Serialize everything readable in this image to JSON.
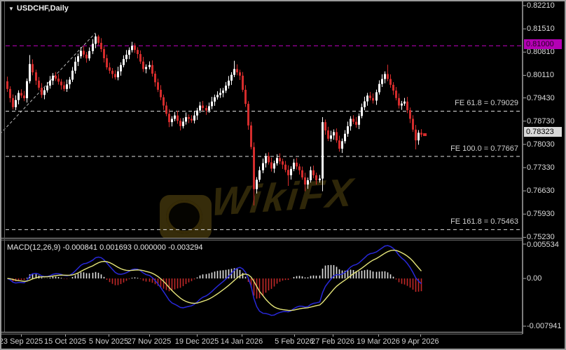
{
  "window": {
    "symbol_label": "USDCHF,Daily",
    "dropdown_icon": "triangle-down"
  },
  "watermark": {
    "text": "WikiFX"
  },
  "colors": {
    "background": "#000000",
    "bull": "#ffffff",
    "bear": "#d42c2c",
    "level_dash": "#dedede",
    "round_level": "#c400c4",
    "macd_line": "#2828d8",
    "signal_line": "#e6e67a",
    "hist_pos": "#e2e2e2",
    "hist_neg": "#c22828",
    "axis_text": "#dcdcdc",
    "current_price_box": "#d9d9d9"
  },
  "chart_data": {
    "type": "candlestick",
    "symbol": "USDCHF",
    "timeframe": "Daily",
    "y_axis_range": [
      0.7512,
      0.8223
    ],
    "grid": false,
    "y_tick_labels": [
      "0.82210",
      "0.81510",
      "0.80810",
      "0.80110",
      "0.79430",
      "0.78730",
      "0.78030",
      "0.77330",
      "0.76630",
      "0.75930",
      "0.75230"
    ],
    "x_tick_labels": [
      "23 Sep 2025",
      "15 Oct 2025",
      "5 Nov 2025",
      "27 Nov 2025",
      "19 Dec 2025",
      "14 Jan 2026",
      "5 Feb 2026",
      "27 Feb 2026",
      "19 Mar 2026",
      "9 Apr 2026"
    ],
    "fib_levels": [
      {
        "name": "FE 61.8",
        "price": 0.79029,
        "label": "FE 61.8 = 0.79029"
      },
      {
        "name": "FE 100.0",
        "price": 0.77667,
        "label": "FE 100.0 = 0.77667"
      },
      {
        "name": "FE 161.8",
        "price": 0.75463,
        "label": "FE 161.8 = 0.75463"
      }
    ],
    "round_level": {
      "price": 0.81,
      "label": "0.81000"
    },
    "current_price": {
      "value": 0.78323,
      "label": "0.78323"
    },
    "trendline": {
      "x1_index": -2.5,
      "y1_price": 0.7834,
      "x2_index": 31.2,
      "y2_price": 0.8139,
      "style": "dashed"
    },
    "indicator": {
      "name": "MACD",
      "params": "12,26,9",
      "header": "MACD(12,26,9) -0.000841 0.001693 0.000000 -0.003294",
      "display_values": [
        "-0.000841",
        "0.001693",
        "0.000000",
        "-0.003294"
      ],
      "axis_labels": [
        "0.005534",
        "0.00",
        "-0.007941"
      ]
    },
    "ohlc": [
      [
        0.7993,
        0.8007,
        0.7961,
        0.797
      ],
      [
        0.797,
        0.7978,
        0.79295,
        0.79425
      ],
      [
        0.79425,
        0.79535,
        0.7908,
        0.7915
      ],
      [
        0.7915,
        0.79505,
        0.7906,
        0.79365
      ],
      [
        0.79365,
        0.7966,
        0.79235,
        0.7958
      ],
      [
        0.7958,
        0.7969,
        0.7943,
        0.795
      ],
      [
        0.795,
        0.7964,
        0.7933,
        0.7942
      ],
      [
        0.7942,
        0.80015,
        0.7929,
        0.79935
      ],
      [
        0.79935,
        0.8072,
        0.79865,
        0.8045
      ],
      [
        0.8045,
        0.8059,
        0.8011,
        0.802
      ],
      [
        0.802,
        0.8028,
        0.7982,
        0.7995
      ],
      [
        0.7995,
        0.8006,
        0.79665,
        0.79735
      ],
      [
        0.79735,
        0.79875,
        0.7943,
        0.7952
      ],
      [
        0.7952,
        0.7974,
        0.7939,
        0.7966
      ],
      [
        0.7966,
        0.7991,
        0.7959,
        0.798
      ],
      [
        0.798,
        0.8009,
        0.7971,
        0.7995
      ],
      [
        0.7995,
        0.8018,
        0.7982,
        0.801
      ],
      [
        0.801,
        0.8021,
        0.7994,
        0.8001
      ],
      [
        0.8001,
        0.8015,
        0.7983,
        0.7992
      ],
      [
        0.7992,
        0.8,
        0.7968,
        0.7981
      ],
      [
        0.7981,
        0.7992,
        0.7963,
        0.797
      ],
      [
        0.797,
        0.7998,
        0.7961,
        0.7984
      ],
      [
        0.7984,
        0.8006,
        0.7971,
        0.7998
      ],
      [
        0.7998,
        0.8036,
        0.7991,
        0.8025
      ],
      [
        0.8025,
        0.8066,
        0.8016,
        0.8052
      ],
      [
        0.8052,
        0.80765,
        0.8039,
        0.80685
      ],
      [
        0.80685,
        0.8096,
        0.80615,
        0.8085
      ],
      [
        0.8085,
        0.8099,
        0.80645,
        0.80735
      ],
      [
        0.80735,
        0.80815,
        0.8049,
        0.8062
      ],
      [
        0.8062,
        0.8095,
        0.8055,
        0.8084
      ],
      [
        0.8084,
        0.812,
        0.8075,
        0.8106
      ],
      [
        0.8106,
        0.8136,
        0.8093,
        0.8128
      ],
      [
        0.8128,
        0.8133,
        0.8102,
        0.8109
      ],
      [
        0.8109,
        0.8123,
        0.8081,
        0.809
      ],
      [
        0.809,
        0.8098,
        0.80495,
        0.80625
      ],
      [
        0.80625,
        0.80735,
        0.8028,
        0.8035
      ],
      [
        0.8035,
        0.8049,
        0.8016,
        0.8025
      ],
      [
        0.8025,
        0.8033,
        0.8002,
        0.8015
      ],
      [
        0.8015,
        0.8026,
        0.7998,
        0.8005
      ],
      [
        0.8005,
        0.8037,
        0.7996,
        0.8023
      ],
      [
        0.8023,
        0.805,
        0.801,
        0.8042
      ],
      [
        0.8042,
        0.8071,
        0.8035,
        0.806
      ],
      [
        0.806,
        0.8087,
        0.8051,
        0.8073
      ],
      [
        0.8073,
        0.8095,
        0.806,
        0.8087
      ],
      [
        0.8087,
        0.8112,
        0.808,
        0.81
      ],
      [
        0.81,
        0.8108,
        0.80785,
        0.80875
      ],
      [
        0.80875,
        0.80955,
        0.8062,
        0.8075
      ],
      [
        0.8075,
        0.8086,
        0.80455,
        0.80525
      ],
      [
        0.80525,
        0.80665,
        0.8021,
        0.803
      ],
      [
        0.803,
        0.8044,
        0.8017,
        0.8036
      ],
      [
        0.8036,
        0.8053,
        0.8029,
        0.8042
      ],
      [
        0.8042,
        0.8056,
        0.8007,
        0.8016
      ],
      [
        0.8016,
        0.8024,
        0.7977,
        0.799
      ],
      [
        0.799,
        0.8001,
        0.79605,
        0.79675
      ],
      [
        0.79675,
        0.79815,
        0.7936,
        0.7945
      ],
      [
        0.7945,
        0.7953,
        0.7907,
        0.792
      ],
      [
        0.792,
        0.7931,
        0.7888,
        0.7895
      ],
      [
        0.7895,
        0.7909,
        0.7855,
        0.787
      ],
      [
        0.787,
        0.7888,
        0.7857,
        0.788
      ],
      [
        0.788,
        0.7901,
        0.7873,
        0.789
      ],
      [
        0.789,
        0.7904,
        0.7865,
        0.7874
      ],
      [
        0.7874,
        0.7882,
        0.7845,
        0.7858
      ],
      [
        0.7858,
        0.78825,
        0.7851,
        0.78715
      ],
      [
        0.78715,
        0.7899,
        0.78625,
        0.7885
      ],
      [
        0.7885,
        0.7893,
        0.7867,
        0.788
      ],
      [
        0.788,
        0.7891,
        0.7868,
        0.7875
      ],
      [
        0.7875,
        0.7904,
        0.7866,
        0.789
      ],
      [
        0.789,
        0.7913,
        0.7877,
        0.7905
      ],
      [
        0.7905,
        0.7931,
        0.7898,
        0.792
      ],
      [
        0.792,
        0.7934,
        0.79035,
        0.79125
      ],
      [
        0.79125,
        0.79205,
        0.7892,
        0.7905
      ],
      [
        0.7905,
        0.7929,
        0.7898,
        0.7918
      ],
      [
        0.7918,
        0.7946,
        0.7909,
        0.7932
      ],
      [
        0.7932,
        0.7953,
        0.7919,
        0.7945
      ],
      [
        0.7945,
        0.7963,
        0.7938,
        0.7952
      ],
      [
        0.7952,
        0.7972,
        0.7943,
        0.7958
      ],
      [
        0.7958,
        0.7973,
        0.7945,
        0.7965
      ],
      [
        0.7965,
        0.7991,
        0.7958,
        0.798
      ],
      [
        0.798,
        0.8009,
        0.7971,
        0.7995
      ],
      [
        0.7995,
        0.80205,
        0.7982,
        0.80125
      ],
      [
        0.80125,
        0.8055,
        0.80055,
        0.803
      ],
      [
        0.803,
        0.8044,
        0.8011,
        0.802
      ],
      [
        0.802,
        0.8028,
        0.7997,
        0.801
      ],
      [
        0.801,
        0.8021,
        0.79605,
        0.79675
      ],
      [
        0.79675,
        0.79815,
        0.7916,
        0.7925
      ],
      [
        0.7925,
        0.7933,
        0.7847,
        0.786
      ],
      [
        0.786,
        0.7871,
        0.7788,
        0.7795
      ],
      [
        0.7795,
        0.7809,
        0.7619,
        0.7668
      ],
      [
        0.7668,
        0.77045,
        0.7655,
        0.76965
      ],
      [
        0.76965,
        0.7736,
        0.76895,
        0.7725
      ],
      [
        0.7725,
        0.77605,
        0.7716,
        0.77465
      ],
      [
        0.77465,
        0.7776,
        0.77335,
        0.7768
      ],
      [
        0.7768,
        0.7779,
        0.7742,
        0.7749
      ],
      [
        0.7749,
        0.7763,
        0.7721,
        0.773
      ],
      [
        0.773,
        0.7754,
        0.7717,
        0.7746
      ],
      [
        0.7746,
        0.7773,
        0.7739,
        0.7762
      ],
      [
        0.7762,
        0.7776,
        0.7743,
        0.7752
      ],
      [
        0.7752,
        0.776,
        0.7729,
        0.7742
      ],
      [
        0.7742,
        0.7753,
        0.7719,
        0.7726
      ],
      [
        0.7726,
        0.774,
        0.7678,
        0.771
      ],
      [
        0.771,
        0.7737,
        0.7697,
        0.7729
      ],
      [
        0.7729,
        0.7759,
        0.7722,
        0.7748
      ],
      [
        0.7748,
        0.7762,
        0.77275,
        0.77365
      ],
      [
        0.77365,
        0.77445,
        0.7712,
        0.7725
      ],
      [
        0.7725,
        0.7736,
        0.76965,
        0.77035
      ],
      [
        0.77035,
        0.77175,
        0.7662,
        0.7682
      ],
      [
        0.7682,
        0.7703,
        0.7669,
        0.7695
      ],
      [
        0.7695,
        0.7736,
        0.7688,
        0.7725
      ],
      [
        0.7725,
        0.7739,
        0.7701,
        0.771
      ],
      [
        0.771,
        0.7718,
        0.7682,
        0.7695
      ],
      [
        0.7695,
        0.7711,
        0.7688,
        0.77
      ],
      [
        0.77,
        0.7885,
        0.7662,
        0.787
      ],
      [
        0.787,
        0.7878,
        0.7832,
        0.7845
      ],
      [
        0.7845,
        0.7856,
        0.7813,
        0.782
      ],
      [
        0.782,
        0.7844,
        0.7811,
        0.783
      ],
      [
        0.783,
        0.7848,
        0.7817,
        0.784
      ],
      [
        0.784,
        0.7851,
        0.7808,
        0.7815
      ],
      [
        0.7815,
        0.7829,
        0.7781,
        0.779
      ],
      [
        0.779,
        0.78205,
        0.7777,
        0.78125
      ],
      [
        0.78125,
        0.7846,
        0.78055,
        0.7835
      ],
      [
        0.7835,
        0.78715,
        0.7826,
        0.78575
      ],
      [
        0.78575,
        0.7888,
        0.78445,
        0.788
      ],
      [
        0.788,
        0.7891,
        0.7864,
        0.7871
      ],
      [
        0.7871,
        0.7885,
        0.7853,
        0.7862
      ],
      [
        0.7862,
        0.78965,
        0.7849,
        0.78885
      ],
      [
        0.78885,
        0.7926,
        0.78815,
        0.7915
      ],
      [
        0.7915,
        0.79465,
        0.7906,
        0.79325
      ],
      [
        0.79325,
        0.7958,
        0.79195,
        0.795
      ],
      [
        0.795,
        0.7961,
        0.79355,
        0.79425
      ],
      [
        0.79425,
        0.79565,
        0.7926,
        0.7935
      ],
      [
        0.7935,
        0.7968,
        0.7922,
        0.796
      ],
      [
        0.796,
        0.7996,
        0.7953,
        0.7985
      ],
      [
        0.7985,
        0.8014,
        0.7976,
        0.8
      ],
      [
        0.8,
        0.8023,
        0.7987,
        0.8015
      ],
      [
        0.8015,
        0.8043,
        0.7993,
        0.8
      ],
      [
        0.8,
        0.8014,
        0.79735,
        0.79825
      ],
      [
        0.79825,
        0.79905,
        0.7952,
        0.7965
      ],
      [
        0.7965,
        0.7976,
        0.79355,
        0.79425
      ],
      [
        0.79425,
        0.79565,
        0.7911,
        0.792
      ],
      [
        0.792,
        0.7934,
        0.7907,
        0.7926
      ],
      [
        0.7926,
        0.7943,
        0.7919,
        0.7932
      ],
      [
        0.7932,
        0.7946,
        0.7897,
        0.7906
      ],
      [
        0.7906,
        0.7914,
        0.7867,
        0.788
      ],
      [
        0.788,
        0.7891,
        0.78405,
        0.78475
      ],
      [
        0.78475,
        0.78615,
        0.7788,
        0.7815
      ],
      [
        0.7815,
        0.7846,
        0.7802,
        0.7838
      ],
      [
        0.7838,
        0.7849,
        0.78253,
        0.78323
      ]
    ]
  }
}
